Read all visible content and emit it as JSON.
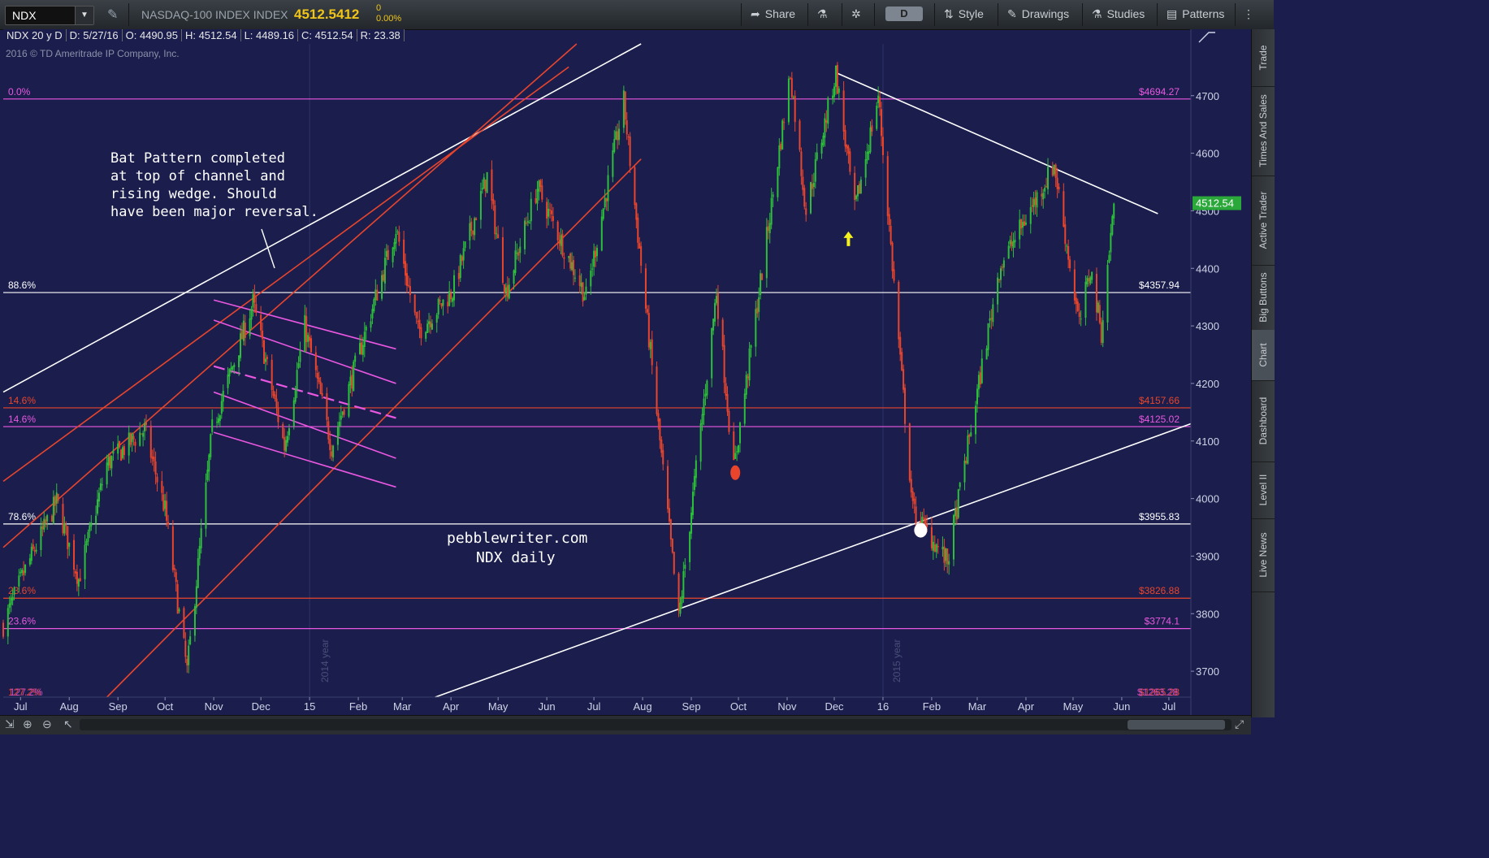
{
  "toolbar": {
    "symbol": "NDX",
    "instrument_name": "NASDAQ-100 INDEX INDEX",
    "last_price": "4512.5412",
    "change": "0",
    "change_pct": "0.00%",
    "share_label": "Share",
    "timeframe": "D",
    "style_label": "Style",
    "drawings_label": "Drawings",
    "studies_label": "Studies",
    "patterns_label": "Patterns"
  },
  "infobar": {
    "period": "NDX 20 y D",
    "date": "D: 5/27/16",
    "open": "O: 4490.95",
    "high": "H: 4512.54",
    "low": "L: 4489.16",
    "close": "C: 4512.54",
    "range": "R: 23.38"
  },
  "copyright": "2016 © TD Ameritrade IP Company, Inc.",
  "sidebar_tabs": [
    "Trade",
    "Times And Sales",
    "Active Trader",
    "Big Buttons",
    "Chart",
    "Dashboard",
    "Level II",
    "Live News"
  ],
  "colors": {
    "background": "#1b1e4d",
    "up_candle": "#2dbf3a",
    "down_candle": "#e8452c",
    "fib_magenta": "#e957e0",
    "fib_red": "#e8452c",
    "trend_white": "#ffffff",
    "last_price_badge": "#2aa83a",
    "annotation_yellow": "#f5f020"
  },
  "annotations": {
    "bat_text": [
      "Bat Pattern completed",
      "at top of channel and",
      "rising wedge.  Should",
      "have been major reversal."
    ],
    "watermark_1": "pebblewriter.com",
    "watermark_2": "NDX daily",
    "year_2014": "2014 year",
    "year_2015": "2015 year"
  },
  "chart_data": {
    "type": "candlestick",
    "symbol": "NDX",
    "timeframe": "daily",
    "x_range": [
      "2014-06-20",
      "2016-07-15"
    ],
    "y_range": [
      3655,
      4790
    ],
    "x_tick_labels": [
      {
        "label": "Jul",
        "date": "2014-07-01"
      },
      {
        "label": "Aug",
        "date": "2014-08-01"
      },
      {
        "label": "Sep",
        "date": "2014-09-01"
      },
      {
        "label": "Oct",
        "date": "2014-10-01"
      },
      {
        "label": "Nov",
        "date": "2014-11-01"
      },
      {
        "label": "Dec",
        "date": "2014-12-01"
      },
      {
        "label": "15",
        "date": "2015-01-01"
      },
      {
        "label": "Feb",
        "date": "2015-02-01"
      },
      {
        "label": "Mar",
        "date": "2015-03-01"
      },
      {
        "label": "Apr",
        "date": "2015-04-01"
      },
      {
        "label": "May",
        "date": "2015-05-01"
      },
      {
        "label": "Jun",
        "date": "2015-06-01"
      },
      {
        "label": "Jul",
        "date": "2015-07-01"
      },
      {
        "label": "Aug",
        "date": "2015-08-01"
      },
      {
        "label": "Sep",
        "date": "2015-09-01"
      },
      {
        "label": "Oct",
        "date": "2015-10-01"
      },
      {
        "label": "Nov",
        "date": "2015-11-01"
      },
      {
        "label": "Dec",
        "date": "2015-12-01"
      },
      {
        "label": "16",
        "date": "2016-01-01"
      },
      {
        "label": "Feb",
        "date": "2016-02-01"
      },
      {
        "label": "Mar",
        "date": "2016-03-01"
      },
      {
        "label": "Apr",
        "date": "2016-04-01"
      },
      {
        "label": "May",
        "date": "2016-05-01"
      },
      {
        "label": "Jun",
        "date": "2016-06-01"
      },
      {
        "label": "Jul",
        "date": "2016-07-01"
      }
    ],
    "y_tick_labels": [
      3700,
      3800,
      3900,
      4000,
      4100,
      4200,
      4300,
      4400,
      4500,
      4600,
      4700
    ],
    "last_price_label": "4512.54",
    "last_price": 4512.54,
    "fib_levels": [
      {
        "pct": "0.0%",
        "price": 4694.27,
        "label": "$4694.27",
        "color": "#e957e0"
      },
      {
        "pct": "88.6%",
        "price": 4357.94,
        "label": "$4357.94",
        "color": "#ffffff"
      },
      {
        "pct": "14.6%",
        "price": 4157.66,
        "label": "$4157.66",
        "color": "#e8452c"
      },
      {
        "pct": "14.6%",
        "price": 4125.02,
        "label": "$4125.02",
        "color": "#e957e0"
      },
      {
        "pct": "78.6%",
        "price": 3955.83,
        "label": "$3955.83",
        "color": "#ffffff"
      },
      {
        "pct": "23.6%",
        "price": 3826.88,
        "label": "$3826.88",
        "color": "#e8452c"
      },
      {
        "pct": "23.6%",
        "price": 3774.1,
        "label": "$3774.1",
        "color": "#e957e0"
      }
    ],
    "bottom_fib": {
      "pct_a": "127.2%",
      "pct_b": "127.2%",
      "label_a": "$1265.28",
      "label_b": "$1263.28"
    },
    "price_path": [
      [
        "2014-06-20",
        3780
      ],
      [
        "2014-07-03",
        3870
      ],
      [
        "2014-07-24",
        3995
      ],
      [
        "2014-08-07",
        3860
      ],
      [
        "2014-08-25",
        4060
      ],
      [
        "2014-09-18",
        4120
      ],
      [
        "2014-10-01",
        3980
      ],
      [
        "2014-10-15",
        3700
      ],
      [
        "2014-10-31",
        4120
      ],
      [
        "2014-11-26",
        4340
      ],
      [
        "2014-12-16",
        4090
      ],
      [
        "2014-12-29",
        4300
      ],
      [
        "2015-01-15",
        4090
      ],
      [
        "2015-02-25",
        4470
      ],
      [
        "2015-03-11",
        4290
      ],
      [
        "2015-04-02",
        4360
      ],
      [
        "2015-04-24",
        4560
      ],
      [
        "2015-05-06",
        4360
      ],
      [
        "2015-05-26",
        4540
      ],
      [
        "2015-06-26",
        4350
      ],
      [
        "2015-07-20",
        4690
      ],
      [
        "2015-08-24",
        3790
      ],
      [
        "2015-09-17",
        4360
      ],
      [
        "2015-09-28",
        4050
      ],
      [
        "2015-11-03",
        4740
      ],
      [
        "2015-11-13",
        4500
      ],
      [
        "2015-12-02",
        4740
      ],
      [
        "2015-12-14",
        4500
      ],
      [
        "2015-12-29",
        4700
      ],
      [
        "2016-01-20",
        3980
      ],
      [
        "2016-02-11",
        3890
      ],
      [
        "2016-03-15",
        4400
      ],
      [
        "2016-04-19",
        4580
      ],
      [
        "2016-05-05",
        4300
      ],
      [
        "2016-05-12",
        4400
      ],
      [
        "2016-05-19",
        4290
      ],
      [
        "2016-05-27",
        4512.54
      ]
    ],
    "trendlines": [
      {
        "color": "#ffffff",
        "points": [
          [
            "2014-06-20",
            4185
          ],
          [
            "2015-07-31",
            4790
          ]
        ]
      },
      {
        "color": "#ffffff",
        "points": [
          [
            "2015-12-02",
            4740
          ],
          [
            "2016-06-24",
            4495
          ]
        ]
      },
      {
        "color": "#ffffff",
        "points": [
          [
            "2015-03-22",
            3655
          ],
          [
            "2016-07-15",
            4130
          ]
        ]
      },
      {
        "color": "#e8452c",
        "points": [
          [
            "2014-06-20",
            4030
          ],
          [
            "2015-06-15",
            4750
          ]
        ]
      },
      {
        "color": "#e8452c",
        "points": [
          [
            "2014-06-20",
            3915
          ],
          [
            "2015-06-20",
            4790
          ]
        ]
      },
      {
        "color": "#e8452c",
        "points": [
          [
            "2014-08-25",
            3655
          ],
          [
            "2015-07-31",
            4590
          ]
        ]
      }
    ],
    "channel_lines": [
      {
        "color": "#e957e0",
        "dashed": false,
        "points": [
          [
            "2014-11-01",
            4345
          ],
          [
            "2015-02-25",
            4260
          ]
        ]
      },
      {
        "color": "#e957e0",
        "dashed": false,
        "points": [
          [
            "2014-11-01",
            4310
          ],
          [
            "2015-02-25",
            4200
          ]
        ]
      },
      {
        "color": "#e957e0",
        "dashed": true,
        "points": [
          [
            "2014-11-01",
            4230
          ],
          [
            "2015-02-25",
            4140
          ]
        ]
      },
      {
        "color": "#e957e0",
        "dashed": false,
        "points": [
          [
            "2014-11-01",
            4185
          ],
          [
            "2015-02-25",
            4070
          ]
        ]
      },
      {
        "color": "#e957e0",
        "dashed": false,
        "points": [
          [
            "2014-11-01",
            4115
          ],
          [
            "2015-02-25",
            4020
          ]
        ]
      }
    ],
    "markers": [
      {
        "type": "red-dot",
        "date": "2015-09-29",
        "price": 4045
      },
      {
        "type": "white-dot",
        "date": "2016-01-25",
        "price": 3945
      },
      {
        "type": "yellow-arrow",
        "date": "2015-12-10",
        "price": 4450
      }
    ],
    "grid_dates": [
      "2015-01-01",
      "2016-01-01"
    ]
  }
}
